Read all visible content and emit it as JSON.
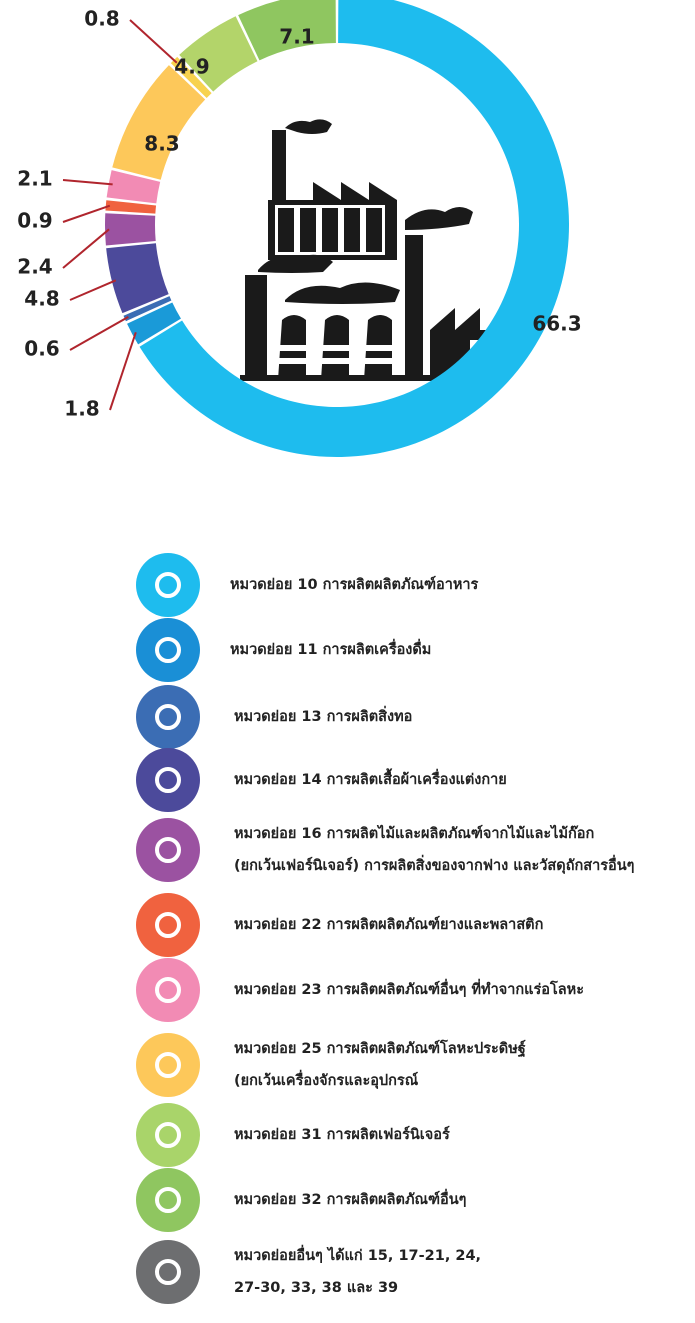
{
  "chart_data": {
    "type": "donut",
    "categories": [
      [
        "หมวดย่อย 10  การผลิตผลิตภัณฑ์อาหาร"
      ],
      [
        "หมวดย่อย 11  การผลิตเครื่องดื่ม"
      ],
      [
        "หมวดย่อย 13  การผลิตสิ่งทอ"
      ],
      [
        "หมวดย่อย 14  การผลิตเสื้อผ้าเครื่องแต่งกาย"
      ],
      [
        "หมวดย่อย 16  การผลิตไม้และผลิตภัณฑ์จากไม้และไม้ก๊อก",
        "(ยกเว้นเฟอร์นิเจอร์) การผลิตสิ่งของจากฟาง และวัสดุถักสารอื่นๆ"
      ],
      [
        "หมวดย่อย 22  การผลิตผลิตภัณฑ์ยางและพลาสติก"
      ],
      [
        "หมวดย่อย 23  การผลิตผลิตภัณฑ์อื่นๆ ที่ทำจากแร่อโลหะ"
      ],
      [
        "หมวดย่อย 25  การผลิตผลิตภัณฑ์โลหะประดิษฐ์",
        "(ยกเว้นเครื่องจักรและอุปกรณ์"
      ],
      [
        "หมวดย่อย 31  การผลิตเฟอร์นิเจอร์"
      ],
      [
        "หมวดย่อย 32  การผลิตผลิตภัณฑ์อื่นๆ"
      ],
      [
        "หมวดย่อยอื่นๆ  ได้แก่ 15, 17-21, 24,",
        "27-30, 33, 38 และ 39"
      ]
    ],
    "values": [
      66.3,
      1.8,
      0.6,
      4.8,
      2.4,
      0.9,
      2.1,
      8.3,
      0.8,
      4.9,
      7.1
    ],
    "colors": [
      "#1ebcee",
      "#1a9ad8",
      "#3b6db4",
      "#4c4a9b",
      "#9b52a1",
      "#f0623f",
      "#f28bb4",
      "#fdc85a",
      "#f7d24e",
      "#b3d46a",
      "#8fc660"
    ]
  }
}
